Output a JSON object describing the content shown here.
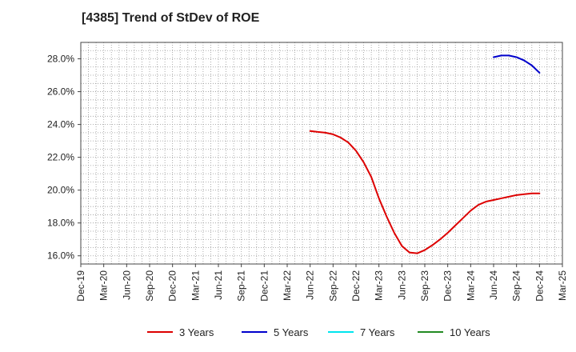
{
  "title": "[4385]  Trend of StDev of ROE",
  "chart_data": {
    "type": "line",
    "title": "[4385]  Trend of StDev of ROE",
    "xlabel": "",
    "ylabel": "",
    "x_ticks": [
      "Dec-19",
      "Mar-20",
      "Jun-20",
      "Sep-20",
      "Dec-20",
      "Mar-21",
      "Jun-21",
      "Sep-21",
      "Dec-21",
      "Mar-22",
      "Jun-22",
      "Sep-22",
      "Dec-22",
      "Mar-23",
      "Jun-23",
      "Sep-23",
      "Dec-23",
      "Mar-24",
      "Jun-24",
      "Sep-24",
      "Dec-24",
      "Mar-25"
    ],
    "y_ticks": [
      "16.0%",
      "18.0%",
      "20.0%",
      "22.0%",
      "24.0%",
      "26.0%",
      "28.0%"
    ],
    "ylim": [
      15.5,
      29.0
    ],
    "grid": true,
    "legend_position": "bottom",
    "series": [
      {
        "name": "3 Years",
        "color": "#dd0000",
        "x": [
          "Jun-22",
          "Jul-22",
          "Aug-22",
          "Sep-22",
          "Oct-22",
          "Nov-22",
          "Dec-22",
          "Jan-23",
          "Feb-23",
          "Mar-23",
          "Apr-23",
          "May-23",
          "Jun-23",
          "Jul-23",
          "Aug-23",
          "Sep-23",
          "Oct-23",
          "Nov-23",
          "Dec-23",
          "Jan-24",
          "Feb-24",
          "Mar-24",
          "Apr-24",
          "May-24",
          "Jun-24",
          "Jul-24",
          "Aug-24",
          "Sep-24",
          "Oct-24",
          "Nov-24",
          "Dec-24"
        ],
        "values": [
          23.6,
          23.55,
          23.5,
          23.4,
          23.2,
          22.9,
          22.4,
          21.7,
          20.8,
          19.5,
          18.4,
          17.4,
          16.6,
          16.2,
          16.15,
          16.35,
          16.65,
          17.0,
          17.4,
          17.85,
          18.3,
          18.75,
          19.1,
          19.3,
          19.4,
          19.5,
          19.6,
          19.7,
          19.75,
          19.8,
          19.8
        ]
      },
      {
        "name": "5 Years",
        "color": "#0000cc",
        "x": [
          "Jun-24",
          "Jul-24",
          "Aug-24",
          "Sep-24",
          "Oct-24",
          "Nov-24",
          "Dec-24"
        ],
        "values": [
          28.1,
          28.2,
          28.2,
          28.1,
          27.9,
          27.6,
          27.15
        ]
      },
      {
        "name": "7 Years",
        "color": "#00e5ee",
        "x": [],
        "values": []
      },
      {
        "name": "10 Years",
        "color": "#228b22",
        "x": [],
        "values": []
      }
    ]
  }
}
